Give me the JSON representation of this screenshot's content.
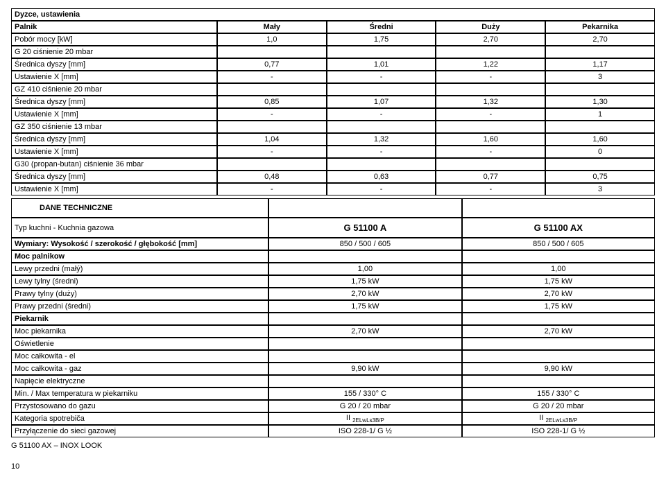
{
  "table1": {
    "title": "Dyzce, ustawienia",
    "header": [
      "Palnik",
      "Mały",
      "Średni",
      "Duży",
      "Pekarnika"
    ],
    "rows": [
      {
        "label": "Pobór mocy [kW]",
        "vals": [
          "1,0",
          "1,75",
          "2,70",
          "2,70"
        ],
        "bold": false
      },
      {
        "label": "G 20 ciśnienie 20 mbar",
        "vals": [
          "",
          "",
          "",
          ""
        ],
        "bold": false,
        "span": true
      },
      {
        "label": "Średnica dyszy [mm]",
        "vals": [
          "0,77",
          "1,01",
          "1,22",
          "1,17"
        ],
        "bold": false
      },
      {
        "label": "Ustawienie X [mm]",
        "vals": [
          "-",
          "-",
          "-",
          "3"
        ],
        "bold": false
      },
      {
        "label": "GZ 410 ciśnienie 20 mbar",
        "vals": [
          "",
          "",
          "",
          ""
        ],
        "bold": false,
        "span": true
      },
      {
        "label": "Średnica dyszy [mm]",
        "vals": [
          "0,85",
          "1,07",
          "1,32",
          "1,30"
        ],
        "bold": false
      },
      {
        "label": "Ustawienie X [mm]",
        "vals": [
          "-",
          "-",
          "-",
          "1"
        ],
        "bold": false
      },
      {
        "label": "GZ 350 ciśnienie 13 mbar",
        "vals": [
          "",
          "",
          "",
          ""
        ],
        "bold": false,
        "span": true
      },
      {
        "label": "Średnica dyszy [mm]",
        "vals": [
          "1,04",
          "1,32",
          "1,60",
          "1,60"
        ],
        "bold": false
      },
      {
        "label": "Ustawienie X [mm]",
        "vals": [
          "-",
          "-",
          "-",
          "0"
        ],
        "bold": false
      },
      {
        "label": "G30 (propan-butan) ciśnienie 36 mbar",
        "vals": [
          "",
          "",
          "",
          ""
        ],
        "bold": false,
        "span": true
      },
      {
        "label": "Średnica dyszy [mm]",
        "vals": [
          "0,48",
          "0,63",
          "0,77",
          "0,75"
        ],
        "bold": false
      },
      {
        "label": "Ustawienie X [mm]",
        "vals": [
          "-",
          "-",
          "-",
          "3"
        ],
        "bold": false
      }
    ]
  },
  "table2": {
    "section": "DANE TECHNICZNE",
    "rows": [
      {
        "label": "Typ kuchni - Kuchnia gazowa",
        "vals": [
          "G 51100 A",
          "G 51100 AX"
        ],
        "gstyle": true
      },
      {
        "label": "Wymiary: Wysokość / szerokość / głębokość [mm]",
        "vals": [
          "850 / 500 / 605",
          "850 / 500 / 605"
        ],
        "boldlabel": true
      },
      {
        "label": "Moc palnikow",
        "vals": [
          "",
          ""
        ],
        "boldlabel": true
      },
      {
        "label": "Lewy przedni (małý)",
        "vals": [
          "1,00",
          "1,00"
        ]
      },
      {
        "label": "Lewy tylny (średni)",
        "vals": [
          "1,75 kW",
          "1,75 kW"
        ]
      },
      {
        "label": "Prawy tylny (duży)",
        "vals": [
          "2,70 kW",
          "2,70 kW"
        ]
      },
      {
        "label": "Prawy przedni (średni)",
        "vals": [
          "1,75 kW",
          "1,75 kW"
        ]
      },
      {
        "label": "Piekarnik",
        "vals": [
          "",
          ""
        ],
        "boldlabel": true
      },
      {
        "label": "Moc piekarnika",
        "vals": [
          "2,70 kW",
          "2,70 kW"
        ]
      },
      {
        "label": "Oświetlenie",
        "vals": [
          "",
          ""
        ]
      },
      {
        "label": "Moc całkowita - el",
        "vals": [
          "",
          ""
        ]
      },
      {
        "label": "Moc całkowita - gaz",
        "vals": [
          "9,90 kW",
          "9,90 kW"
        ]
      },
      {
        "label": "Napięcie elektryczne",
        "vals": [
          "",
          ""
        ]
      },
      {
        "label": "Min. / Max temperatura w piekarniku",
        "vals": [
          "155 / 330° C",
          "155 / 330° C"
        ]
      },
      {
        "label": "Przystosowano do gazu",
        "vals": [
          "G 20 / 20 mbar",
          "G 20 / 20 mbar"
        ]
      },
      {
        "label": "Kategoria spotrebiča",
        "vals": [
          "II 2ELwLs3B/P",
          "II 2ELwLs3B/P"
        ],
        "subscript": true
      },
      {
        "label": "Przyłączenie do sieci gazowej",
        "vals": [
          "ISO 228-1/ G ½",
          "ISO 228-1/ G ½"
        ]
      }
    ]
  },
  "footer_note": "G 51100 AX – INOX LOOK",
  "page_num": "10"
}
